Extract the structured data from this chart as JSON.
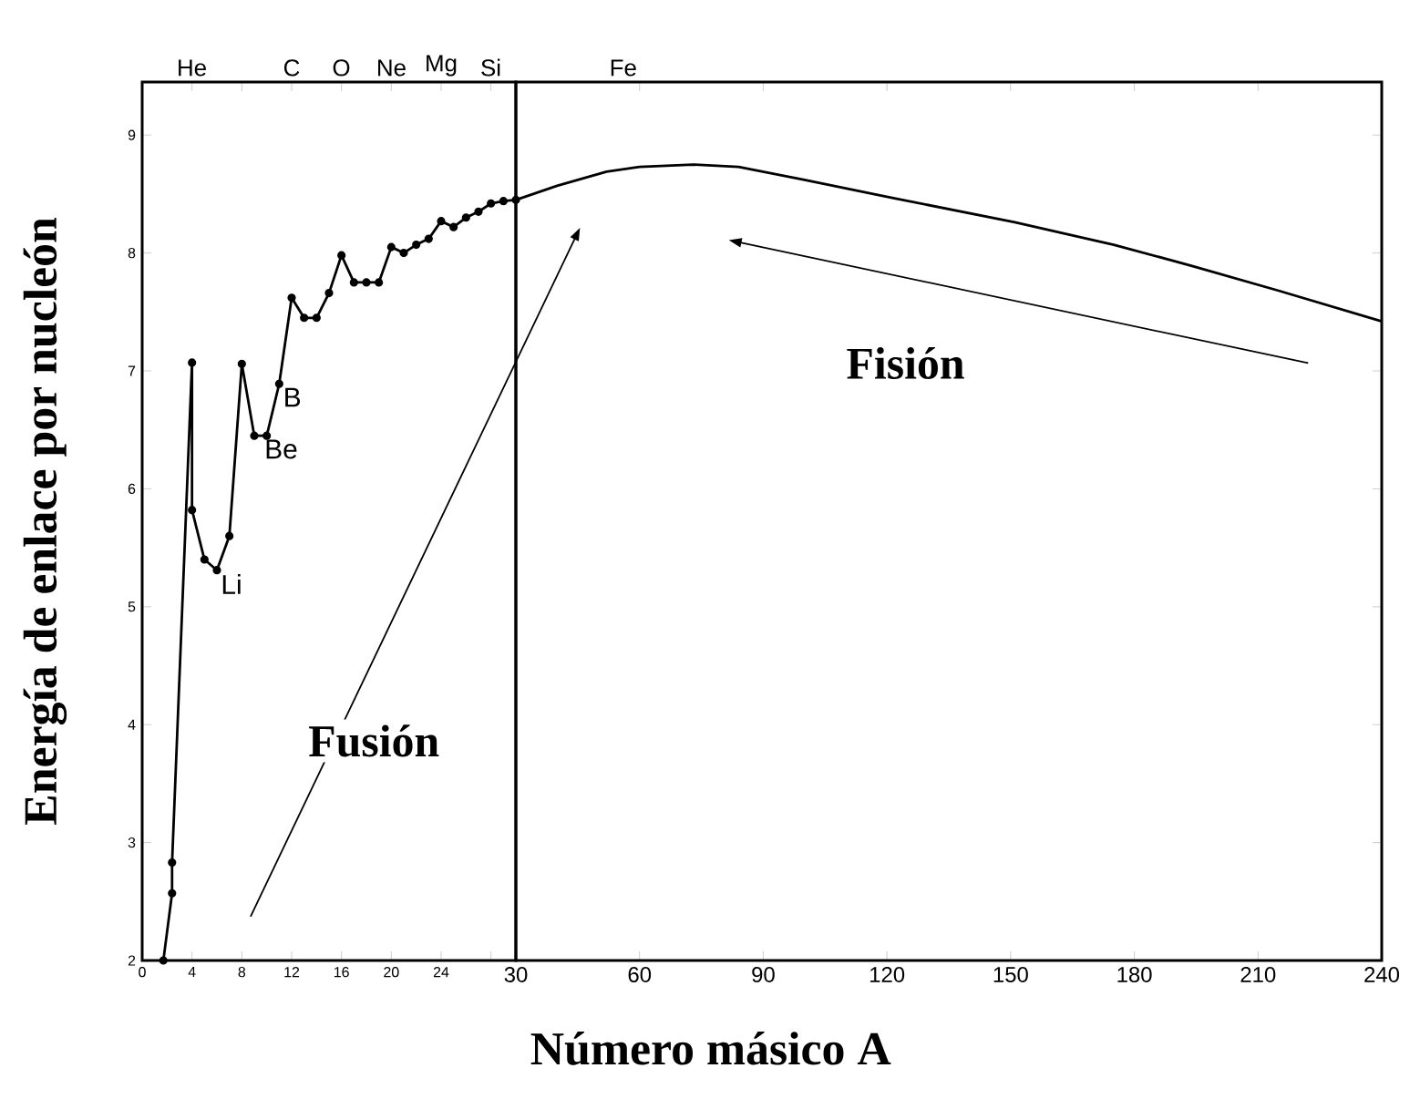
{
  "chart_data": [
    {
      "type": "line",
      "ylabel": "Energía de enlace por nucleón",
      "xlim": [
        0,
        30
      ],
      "ylim": [
        2,
        9.45
      ],
      "xticks": [
        0,
        4,
        8,
        12,
        16,
        20,
        24,
        {
          "value": 28,
          "label": null
        }
      ],
      "yticks": [
        2,
        3,
        4,
        5,
        6,
        7,
        8,
        9
      ],
      "marker": "circle",
      "color": "#000000",
      "x": [
        1.7,
        2.4,
        2.4,
        4,
        4,
        5,
        6,
        7,
        8,
        9,
        10,
        11,
        12,
        13,
        14,
        15,
        16,
        17,
        18,
        19,
        20,
        21,
        22,
        23,
        24,
        25,
        26,
        27,
        28,
        29,
        30
      ],
      "values": [
        2.0,
        2.57,
        2.83,
        7.07,
        5.82,
        5.4,
        5.31,
        5.6,
        7.06,
        6.45,
        6.45,
        6.89,
        7.62,
        7.45,
        7.45,
        7.66,
        7.98,
        7.75,
        7.75,
        7.75,
        8.05,
        8.0,
        8.07,
        8.12,
        8.27,
        8.22,
        8.3,
        8.35,
        8.42,
        8.44,
        8.45
      ],
      "annotations": [
        {
          "text": "Li",
          "x": 6,
          "y": 5.31
        },
        {
          "text": "Be",
          "x": 9.5,
          "y": 6.45
        },
        {
          "text": "B",
          "x": 11,
          "y": 6.89
        },
        "He",
        "C",
        "O",
        "Ne",
        "Mg",
        "Si",
        "Fusión"
      ]
    },
    {
      "type": "line",
      "xlabel": "Número másico A",
      "xlim": [
        30,
        240
      ],
      "ylim": [
        2,
        9.45
      ],
      "xticks": [
        30,
        60,
        90,
        120,
        150,
        180,
        210,
        240
      ],
      "yticks": [
        2,
        3,
        4,
        5,
        6,
        7,
        8,
        9
      ],
      "tick_labels": "x",
      "color": "#000000",
      "x": [
        30,
        40,
        52,
        60,
        73,
        84,
        100,
        121,
        151,
        175,
        194,
        215,
        240
      ],
      "values": [
        8.45,
        8.57,
        8.69,
        8.73,
        8.75,
        8.73,
        8.62,
        8.47,
        8.26,
        8.07,
        7.89,
        7.68,
        7.42
      ],
      "annotations": [
        "Fe",
        "Fisión"
      ]
    }
  ]
}
